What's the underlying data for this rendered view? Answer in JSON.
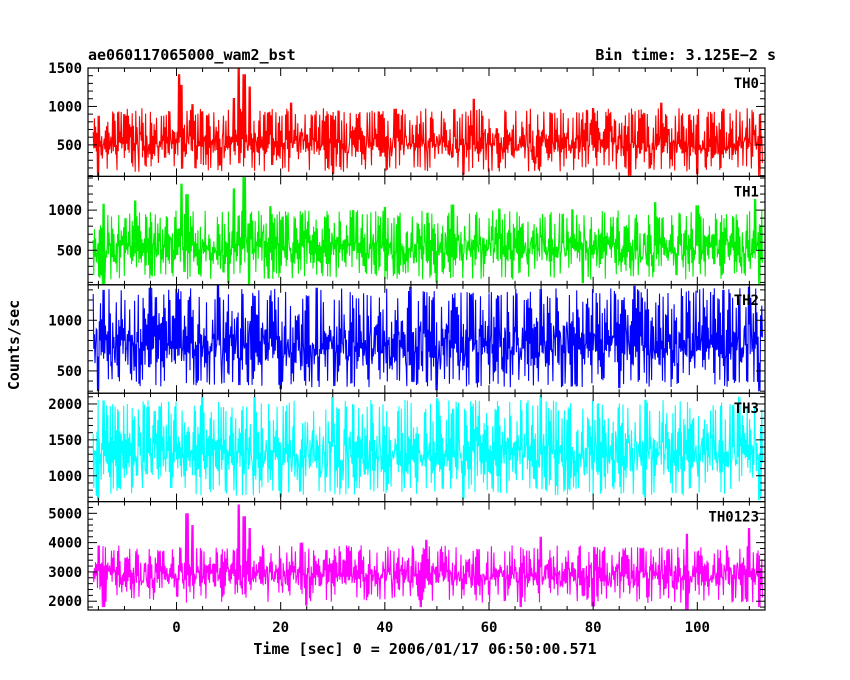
{
  "header": {
    "title": "ae060117065000_wam2_bst",
    "bin_time": "Bin time: 3.125E−2 s"
  },
  "chart_data": {
    "type": "line",
    "title": "ae060117065000_wam2_bst",
    "xlabel": "Time [sec] 0 = 2006/01/17 06:50:00.571",
    "ylabel": "Counts/sec",
    "xlim": [
      -17,
      113
    ],
    "x_ticks": [
      0,
      20,
      40,
      60,
      80,
      100
    ],
    "x_range": [
      -16,
      112.5
    ],
    "grid": false,
    "series": [
      {
        "name": "TH0",
        "color": "#ff0000",
        "ylim": [
          90,
          1500
        ],
        "y_ticks": [
          500,
          1000,
          1500
        ],
        "base_range": [
          240,
          880
        ],
        "spikes_up": [
          [
            -15,
            880
          ],
          [
            -10,
            900
          ],
          [
            0.5,
            1420
          ],
          [
            1,
            1280
          ],
          [
            3,
            1030
          ],
          [
            11,
            1110
          ],
          [
            12,
            1550
          ],
          [
            13,
            1420
          ],
          [
            14,
            1260
          ],
          [
            22,
            1050
          ],
          [
            42,
            970
          ],
          [
            57,
            1100
          ],
          [
            80,
            980
          ],
          [
            93,
            1050
          ],
          [
            105,
            970
          ],
          [
            112,
            900
          ]
        ],
        "spikes_down": [
          [
            -15,
            90
          ],
          [
            1,
            190
          ],
          [
            12,
            260
          ],
          [
            30,
            120
          ],
          [
            55,
            110
          ],
          [
            87,
            100
          ],
          [
            100,
            120
          ],
          [
            112,
            95
          ]
        ]
      },
      {
        "name": "TH1",
        "color": "#00ee00",
        "ylim": [
          70,
          1420
        ],
        "y_ticks": [
          500,
          1000
        ],
        "base_range": [
          230,
          900
        ],
        "spikes_up": [
          [
            -14,
            1080
          ],
          [
            -8,
            1120
          ],
          [
            1,
            1330
          ],
          [
            2,
            1200
          ],
          [
            11,
            1270
          ],
          [
            13,
            1420
          ],
          [
            18,
            1050
          ],
          [
            34,
            1000
          ],
          [
            40,
            1040
          ],
          [
            53,
            1070
          ],
          [
            62,
            1020
          ],
          [
            76,
            1010
          ],
          [
            92,
            1100
          ],
          [
            100,
            1060
          ],
          [
            111,
            1140
          ]
        ],
        "spikes_down": [
          [
            -14,
            80
          ],
          [
            10,
            90
          ],
          [
            14,
            75
          ],
          [
            50,
            100
          ],
          [
            78,
            90
          ],
          [
            112,
            80
          ]
        ]
      },
      {
        "name": "TH2",
        "color": "#0000ff",
        "ylim": [
          280,
          1350
        ],
        "y_ticks": [
          500,
          1000
        ],
        "base_range": [
          420,
          1200
        ],
        "spikes_up": [
          [
            -14,
            1300
          ],
          [
            -5,
            1320
          ],
          [
            8,
            1350
          ],
          [
            27,
            1320
          ],
          [
            45,
            1330
          ],
          [
            70,
            1310
          ],
          [
            88,
            1340
          ],
          [
            105,
            1300
          ],
          [
            110,
            1330
          ]
        ],
        "spikes_down": [
          [
            -15,
            300
          ],
          [
            12,
            360
          ],
          [
            20,
            320
          ],
          [
            50,
            310
          ],
          [
            85,
            330
          ],
          [
            112,
            300
          ]
        ]
      },
      {
        "name": "TH3",
        "color": "#00ffff",
        "ylim": [
          640,
          2150
        ],
        "y_ticks": [
          1000,
          1500,
          2000
        ],
        "base_range": [
          840,
          1900
        ],
        "spikes_up": [
          [
            -14,
            2050
          ],
          [
            5,
            2150
          ],
          [
            15,
            2100
          ],
          [
            30,
            2100
          ],
          [
            50,
            2080
          ],
          [
            70,
            2120
          ],
          [
            90,
            2060
          ],
          [
            108,
            2100
          ]
        ],
        "spikes_down": [
          [
            -15,
            660
          ],
          [
            20,
            700
          ],
          [
            55,
            680
          ],
          [
            90,
            700
          ],
          [
            112,
            660
          ]
        ]
      },
      {
        "name": "TH0123",
        "color": "#ff00ff",
        "ylim": [
          1700,
          5400
        ],
        "y_ticks": [
          2000,
          3000,
          4000,
          5000
        ],
        "base_range": [
          2300,
          3700
        ],
        "spikes_up": [
          [
            -15,
            3900
          ],
          [
            2,
            5000
          ],
          [
            3,
            4600
          ],
          [
            12,
            5300
          ],
          [
            13,
            4900
          ],
          [
            14,
            4500
          ],
          [
            24,
            4000
          ],
          [
            48,
            4100
          ],
          [
            70,
            4200
          ],
          [
            98,
            4300
          ],
          [
            110,
            4500
          ]
        ],
        "spikes_down": [
          [
            -14,
            1800
          ],
          [
            25,
            1850
          ],
          [
            47,
            1800
          ],
          [
            66,
            1800
          ],
          [
            80,
            1820
          ],
          [
            98,
            1700
          ],
          [
            112,
            1800
          ]
        ]
      }
    ]
  }
}
